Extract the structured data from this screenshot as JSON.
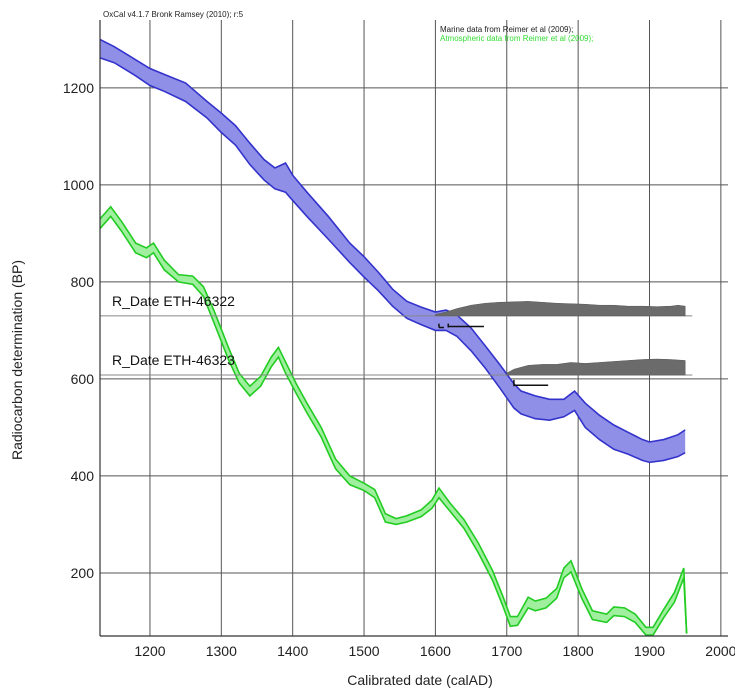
{
  "header_text": "OxCal v4.1.7 Bronk Ramsey (2010); r:5",
  "chart_data": {
    "type": "area",
    "xlabel": "Calibrated date (calAD)",
    "ylabel": "Radiocarbon determination (BP)",
    "xlim": [
      1130,
      2010
    ],
    "ylim": [
      70,
      1340
    ],
    "x_ticks": [
      1200,
      1300,
      1400,
      1500,
      1600,
      1700,
      1800,
      1900,
      2000
    ],
    "y_ticks": [
      200,
      400,
      600,
      800,
      1000,
      1200
    ],
    "grid": true,
    "legend": [
      {
        "text": "Marine data from Reimer et al (2009);",
        "color": "#222222"
      },
      {
        "text": "Atmospheric data from Reimer et al (2009);",
        "color": "#33dd33"
      }
    ],
    "series": [
      {
        "color": "#3333cc",
        "fill": "#8f8fe8",
        "points": [
          [
            1130,
            1300,
            1262
          ],
          [
            1150,
            1285,
            1252
          ],
          [
            1180,
            1258,
            1225
          ],
          [
            1200,
            1240,
            1205
          ],
          [
            1220,
            1228,
            1193
          ],
          [
            1250,
            1210,
            1172
          ],
          [
            1280,
            1172,
            1138
          ],
          [
            1300,
            1148,
            1108
          ],
          [
            1320,
            1122,
            1082
          ],
          [
            1340,
            1086,
            1042
          ],
          [
            1360,
            1052,
            1010
          ],
          [
            1375,
            1035,
            992
          ],
          [
            1390,
            1045,
            985
          ],
          [
            1400,
            1020,
            968
          ],
          [
            1420,
            985,
            935
          ],
          [
            1450,
            935,
            888
          ],
          [
            1480,
            880,
            840
          ],
          [
            1500,
            852,
            810
          ],
          [
            1520,
            820,
            782
          ],
          [
            1540,
            785,
            750
          ],
          [
            1560,
            760,
            725
          ],
          [
            1580,
            748,
            712
          ],
          [
            1600,
            738,
            700
          ],
          [
            1615,
            742,
            700
          ],
          [
            1630,
            732,
            688
          ],
          [
            1650,
            705,
            658
          ],
          [
            1670,
            668,
            622
          ],
          [
            1690,
            630,
            582
          ],
          [
            1710,
            590,
            540
          ],
          [
            1720,
            575,
            528
          ],
          [
            1740,
            565,
            518
          ],
          [
            1760,
            558,
            515
          ],
          [
            1780,
            558,
            522
          ],
          [
            1795,
            575,
            535
          ],
          [
            1810,
            550,
            500
          ],
          [
            1830,
            525,
            475
          ],
          [
            1850,
            505,
            455
          ],
          [
            1870,
            490,
            445
          ],
          [
            1890,
            475,
            432
          ],
          [
            1900,
            470,
            428
          ],
          [
            1920,
            475,
            432
          ],
          [
            1940,
            485,
            440
          ],
          [
            1950,
            495,
            448
          ]
        ]
      },
      {
        "color": "#22cc22",
        "fill": "#9fef9f",
        "points": [
          [
            1130,
            930,
            910
          ],
          [
            1145,
            955,
            935
          ],
          [
            1160,
            925,
            905
          ],
          [
            1180,
            880,
            860
          ],
          [
            1195,
            870,
            850
          ],
          [
            1205,
            880,
            860
          ],
          [
            1220,
            845,
            825
          ],
          [
            1240,
            815,
            800
          ],
          [
            1260,
            812,
            795
          ],
          [
            1275,
            790,
            770
          ],
          [
            1290,
            740,
            715
          ],
          [
            1310,
            665,
            640
          ],
          [
            1325,
            612,
            592
          ],
          [
            1340,
            585,
            565
          ],
          [
            1355,
            605,
            585
          ],
          [
            1370,
            645,
            625
          ],
          [
            1380,
            665,
            645
          ],
          [
            1390,
            635,
            612
          ],
          [
            1405,
            590,
            570
          ],
          [
            1420,
            550,
            530
          ],
          [
            1440,
            500,
            480
          ],
          [
            1460,
            435,
            415
          ],
          [
            1480,
            400,
            382
          ],
          [
            1500,
            385,
            370
          ],
          [
            1515,
            372,
            355
          ],
          [
            1530,
            322,
            305
          ],
          [
            1545,
            312,
            300
          ],
          [
            1560,
            318,
            305
          ],
          [
            1580,
            330,
            316
          ],
          [
            1595,
            350,
            333
          ],
          [
            1605,
            375,
            355
          ],
          [
            1620,
            345,
            328
          ],
          [
            1640,
            310,
            292
          ],
          [
            1660,
            262,
            242
          ],
          [
            1680,
            205,
            185
          ],
          [
            1695,
            150,
            130
          ],
          [
            1705,
            110,
            90
          ],
          [
            1715,
            110,
            92
          ],
          [
            1730,
            150,
            128
          ],
          [
            1740,
            142,
            122
          ],
          [
            1755,
            148,
            128
          ],
          [
            1770,
            168,
            148
          ],
          [
            1780,
            210,
            190
          ],
          [
            1790,
            225,
            202
          ],
          [
            1805,
            168,
            148
          ],
          [
            1820,
            122,
            104
          ],
          [
            1840,
            115,
            98
          ],
          [
            1850,
            130,
            112
          ],
          [
            1865,
            128,
            110
          ],
          [
            1880,
            115,
            98
          ],
          [
            1895,
            88,
            72
          ],
          [
            1905,
            88,
            72
          ],
          [
            1920,
            125,
            108
          ],
          [
            1935,
            160,
            140
          ],
          [
            1948,
            210,
            190
          ],
          [
            1952,
            75,
            75
          ]
        ]
      }
    ],
    "dates": [
      {
        "label": "R_Date ETH-46322",
        "y": 730,
        "line_x": [
          1130,
          1960
        ],
        "distribution": [
          [
            1600,
            733
          ],
          [
            1615,
            738
          ],
          [
            1630,
            745
          ],
          [
            1650,
            752
          ],
          [
            1670,
            756
          ],
          [
            1690,
            758
          ],
          [
            1710,
            759
          ],
          [
            1730,
            760
          ],
          [
            1750,
            758
          ],
          [
            1770,
            756
          ],
          [
            1790,
            755
          ],
          [
            1810,
            754
          ],
          [
            1830,
            752
          ],
          [
            1850,
            752
          ],
          [
            1870,
            750
          ],
          [
            1890,
            750
          ],
          [
            1910,
            749
          ],
          [
            1930,
            750
          ],
          [
            1940,
            752
          ],
          [
            1950,
            750
          ]
        ],
        "range_bars": [
          {
            "x": [
              1605,
              1612
            ],
            "y": 706
          },
          {
            "x": [
              1618,
              1668
            ],
            "y": 708
          }
        ],
        "bar_ticks": [
          {
            "x": 1605,
            "y1": 706,
            "y2": 714
          },
          {
            "x": 1618,
            "y1": 706,
            "y2": 714
          }
        ]
      },
      {
        "label": "R_Date ETH-46323",
        "y": 608,
        "line_x": [
          1130,
          1960
        ],
        "distribution": [
          [
            1700,
            612
          ],
          [
            1710,
            620
          ],
          [
            1730,
            628
          ],
          [
            1750,
            630
          ],
          [
            1770,
            630
          ],
          [
            1790,
            634
          ],
          [
            1810,
            632
          ],
          [
            1830,
            634
          ],
          [
            1850,
            636
          ],
          [
            1870,
            638
          ],
          [
            1890,
            640
          ],
          [
            1910,
            641
          ],
          [
            1930,
            640
          ],
          [
            1950,
            638
          ]
        ],
        "range_bars": [
          {
            "x": [
              1710,
              1758
            ],
            "y": 587
          }
        ],
        "bar_ticks": [
          {
            "x": 1710,
            "y1": 585,
            "y2": 598
          }
        ],
        "extra_line_x": [
          1430,
          1700
        ]
      }
    ]
  }
}
